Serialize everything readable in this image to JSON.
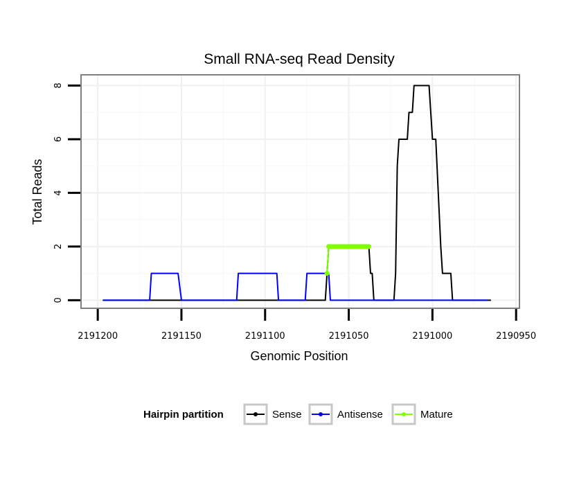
{
  "chart_data": {
    "type": "line",
    "title": "Small RNA-seq Read Density",
    "xlabel": "Genomic Position",
    "ylabel": "Total Reads",
    "x_reversed": true,
    "xlim": [
      2191210,
      2190948
    ],
    "ylim": [
      -0.3,
      8.4
    ],
    "x_ticks": [
      2191200,
      2191150,
      2191100,
      2191050,
      2191000,
      2190950
    ],
    "x_tick_labels": [
      "2191200",
      "2191150",
      "2191100",
      "2191050",
      "2191000",
      "2190950"
    ],
    "y_ticks": [
      0,
      2,
      4,
      6,
      8
    ],
    "y_tick_labels": [
      "0",
      "2",
      "4",
      "6",
      "8"
    ],
    "grid": true,
    "legend": {
      "title": "Hairpin partition",
      "position": "bottom",
      "entries": [
        "Sense",
        "Antisense",
        "Mature"
      ]
    },
    "series": [
      {
        "name": "Sense",
        "color": "#000000",
        "points": [
          [
            2191197,
            0
          ],
          [
            2191064,
            0
          ],
          [
            2191063,
            1
          ],
          [
            2191062,
            2
          ],
          [
            2191038,
            2
          ],
          [
            2191037,
            1
          ],
          [
            2191036,
            1
          ],
          [
            2191035,
            0
          ],
          [
            2191023,
            0
          ],
          [
            2191022,
            1
          ],
          [
            2191021,
            5
          ],
          [
            2191020,
            6
          ],
          [
            2191015,
            6
          ],
          [
            2191014,
            7
          ],
          [
            2191012,
            7
          ],
          [
            2191011,
            8
          ],
          [
            2191002,
            8
          ],
          [
            2191000,
            6
          ],
          [
            2190998,
            6
          ],
          [
            2190995,
            2
          ],
          [
            2190994,
            1
          ],
          [
            2190989,
            1
          ],
          [
            2190988,
            0
          ],
          [
            2190965,
            0
          ]
        ]
      },
      {
        "name": "Antisense",
        "color": "#0000ff",
        "points": [
          [
            2191197,
            0
          ],
          [
            2191169,
            0
          ],
          [
            2191168,
            1
          ],
          [
            2191152,
            1
          ],
          [
            2191150,
            0
          ],
          [
            2191117,
            0
          ],
          [
            2191116,
            1
          ],
          [
            2191093,
            1
          ],
          [
            2191092,
            0
          ],
          [
            2191076,
            0
          ],
          [
            2191075,
            1
          ],
          [
            2191062,
            1
          ],
          [
            2191061,
            0
          ],
          [
            2190967,
            0
          ]
        ]
      },
      {
        "name": "Mature",
        "color": "#7fff00",
        "points": [
          [
            2191063,
            1
          ],
          [
            2191062,
            2
          ],
          [
            2191061,
            2
          ],
          [
            2191060,
            2
          ],
          [
            2191059,
            2
          ],
          [
            2191058,
            2
          ],
          [
            2191057,
            2
          ],
          [
            2191056,
            2
          ],
          [
            2191055,
            2
          ],
          [
            2191054,
            2
          ],
          [
            2191053,
            2
          ],
          [
            2191052,
            2
          ],
          [
            2191051,
            2
          ],
          [
            2191050,
            2
          ],
          [
            2191049,
            2
          ],
          [
            2191048,
            2
          ],
          [
            2191047,
            2
          ],
          [
            2191046,
            2
          ],
          [
            2191045,
            2
          ],
          [
            2191044,
            2
          ],
          [
            2191043,
            2
          ],
          [
            2191042,
            2
          ],
          [
            2191041,
            2
          ],
          [
            2191040,
            2
          ],
          [
            2191039,
            2
          ],
          [
            2191038,
            2
          ]
        ]
      }
    ]
  }
}
